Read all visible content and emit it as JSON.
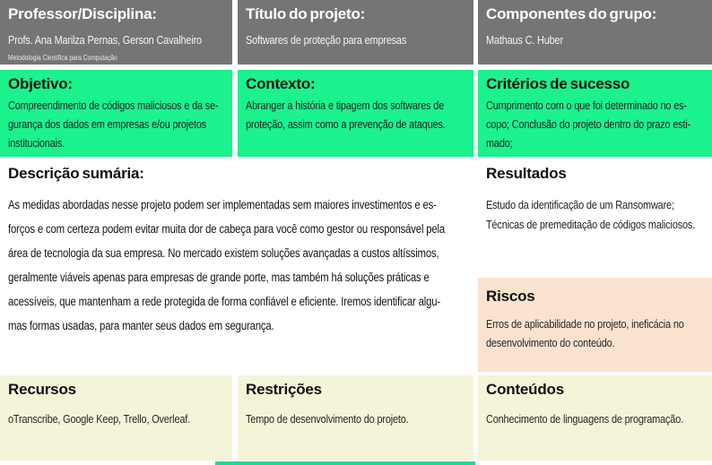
{
  "cells": {
    "professor": {
      "title": "Professor/Disciplina:",
      "body": "Profs. Ana Marilza Pernas, Gerson Cavalheiro",
      "note": "Metodologia Científica para Computação"
    },
    "titulo_projeto": {
      "title": "Título do projeto:",
      "body": "Softwares de proteção para empresas"
    },
    "componentes": {
      "title": "Componentes do grupo:",
      "body": "Mathaus C. Huber"
    },
    "objetivo": {
      "title": "Objetivo:",
      "body": "Compreendimento de códigos maliciosos e da se-\ngurança dos dados em empresas e/ou projetos\ninstitucionais."
    },
    "contexto": {
      "title": "Contexto:",
      "body": "Abranger a história e tipagem dos softwares de\nproteção, assim como a prevenção de ataques."
    },
    "criterios": {
      "title": "Critérios de sucesso",
      "body": "Cumprimento com o que foi determinado no es-\ncopo; Conclusão do projeto dentro do prazo esti-\nmado;"
    },
    "descricao": {
      "title": "Descrição sumária:",
      "body": "As medidas abordadas nesse projeto podem ser implementadas sem maiores investimentos e es-\nforços e com certeza podem evitar muita dor de cabeça para você como gestor ou responsável pela\nárea de tecnologia da sua empresa.  No mercado existem soluções avançadas a custos altíssimos,\ngeralmente viáveis apenas para empresas de grande porte, mas também há soluções práticas e\nacessíveis, que mantenham a rede protegida de forma confiável e eficiente.  Iremos identificar algu-\nmas formas usadas, para manter seus dados em segurança."
    },
    "resultados": {
      "title": "Resultados",
      "body": "Estudo da identificação de um Ransomware;\nTécnicas de premeditação de códigos maliciosos."
    },
    "riscos": {
      "title": "Riscos",
      "body": "Erros de aplicabilidade no projeto, ineficácia no\ndesenvolvimento do conteúdo."
    },
    "recursos": {
      "title": "Recursos",
      "body": "oTranscribe, Google Keep, Trello, Overleaf."
    },
    "restricoes": {
      "title": "Restrições",
      "body": "Tempo de desenvolvimento do projeto."
    },
    "conteudos": {
      "title": "Conteúdos",
      "body": "Conhecimento de linguagens de programação."
    }
  },
  "colors": {
    "header_bg": "#757575",
    "highlight_bg": "#1bf28e",
    "risk_bg": "#fae3cf",
    "footer_bg": "#f3f4d8",
    "page_bg": "#ffffff"
  }
}
